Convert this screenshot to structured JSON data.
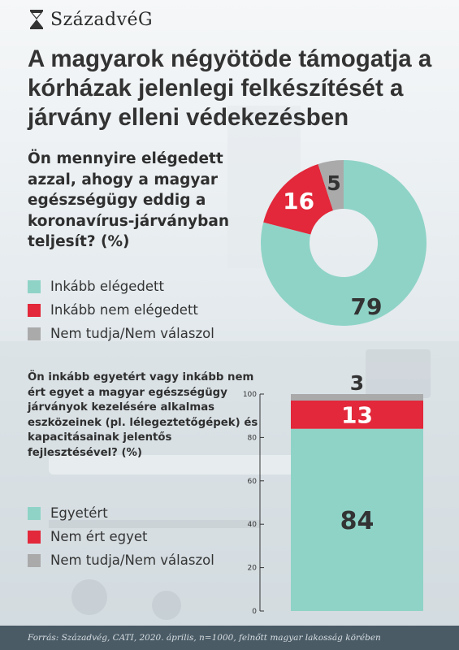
{
  "brand": {
    "name": "SzázadvéG"
  },
  "title": "A magyarok négyötöde támogatja a kórházak jelenlegi felkészítését a járvány elleni védekezésben",
  "footer": "Forrás: Századvég, CATI, 2020. április, n=1000, felnőtt magyar lakosság körében",
  "colors": {
    "teal": "#8fd3c7",
    "red": "#e2283a",
    "gray": "#aaaaaa",
    "text": "#333333"
  },
  "chart_data": [
    {
      "type": "pie",
      "question": "Ön mennyire elégedett azzal, ahogy a magyar egészségügy eddig a koronavírus-járványban teljesít? (%)",
      "categories": [
        "Inkább elégedett",
        "Inkább nem elégedett",
        "Nem tudja/Nem válaszol"
      ],
      "values": [
        79,
        16,
        5
      ],
      "colors": [
        "#8fd3c7",
        "#e2283a",
        "#aaaaaa"
      ],
      "donut": true,
      "legend": "left"
    },
    {
      "type": "bar",
      "stacked": true,
      "question": "Ön inkább egyetért vagy inkább nem ért egyet a magyar egészségügy járványok kezelésére alkalmas eszközeinek (pl. lélegeztetőgépek) és kapacitásainak jelentős fejlesztésével? (%)",
      "categories": [
        "Egyetért",
        "Nem ért egyet",
        "Nem tudja/Nem válaszol"
      ],
      "values": [
        84,
        13,
        3
      ],
      "colors": [
        "#8fd3c7",
        "#e2283a",
        "#aaaaaa"
      ],
      "ylim": [
        0,
        100
      ],
      "yticks": [
        0,
        20,
        40,
        60,
        80,
        100
      ],
      "legend": "left"
    }
  ]
}
